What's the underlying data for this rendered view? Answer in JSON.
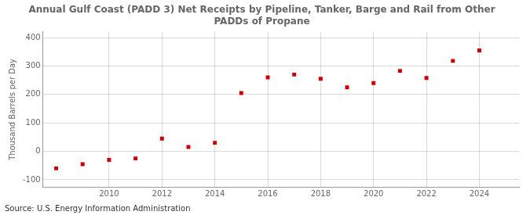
{
  "chart_data": {
    "type": "scatter",
    "title": "Annual Gulf Coast (PADD 3) Net Receipts by Pipeline, Tanker, Barge and Rail from Other\nPADDs of Propane",
    "y_label": "Thousand Barrels per Day",
    "annotations": [
      "Source: U.S. Energy Information Administration"
    ],
    "x": [
      2008,
      2009,
      2010,
      2011,
      2012,
      2013,
      2014,
      2015,
      2016,
      2017,
      2018,
      2019,
      2020,
      2021,
      2022,
      2023,
      2024
    ],
    "values": [
      -60,
      -45,
      -30,
      -25,
      45,
      15,
      30,
      205,
      260,
      270,
      255,
      225,
      240,
      283,
      258,
      318,
      355
    ],
    "color": "#cc0000",
    "marker": "square",
    "xlim": [
      2007.5,
      2025.5
    ],
    "xticks": [
      2010,
      2012,
      2014,
      2016,
      2018,
      2020,
      2022,
      2024
    ],
    "ylim": [
      -125,
      420
    ],
    "yticks": [
      -100,
      0,
      100,
      200,
      300,
      400
    ],
    "grid": true
  }
}
